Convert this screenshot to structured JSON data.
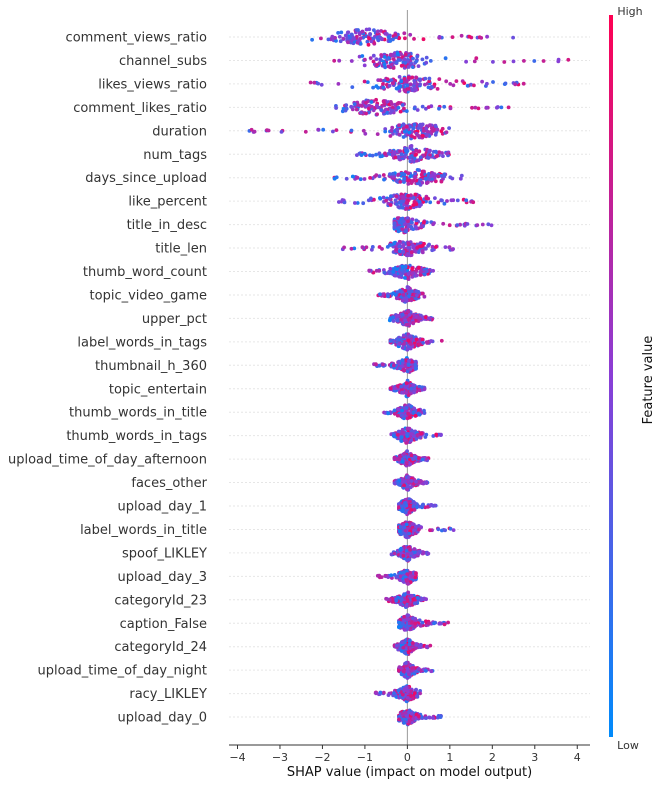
{
  "chart_data": {
    "type": "beeswarm",
    "xlabel": "SHAP value (impact on model output)",
    "xlim": [
      -4.2,
      4.3
    ],
    "xticks": [
      -4,
      -3,
      -2,
      -1,
      0,
      1,
      2,
      3,
      4
    ],
    "colorbar": {
      "label": "Feature value",
      "high": "High",
      "low": "Low",
      "low_color": "#008bfb",
      "high_color": "#ff0052"
    },
    "features": [
      {
        "name": "comment_views_ratio",
        "min": -2.3,
        "max": 2.5,
        "peak": -1.0,
        "spread": 0.55
      },
      {
        "name": "channel_subs",
        "min": -2.2,
        "max": 3.9,
        "peak": -0.2,
        "spread": 0.5
      },
      {
        "name": "likes_views_ratio",
        "min": -2.8,
        "max": 2.8,
        "peak": 0.0,
        "spread": 0.6
      },
      {
        "name": "comment_likes_ratio",
        "min": -1.7,
        "max": 2.5,
        "peak": -0.8,
        "spread": 0.5
      },
      {
        "name": "duration",
        "min": -3.9,
        "max": 1.0,
        "peak": 0.2,
        "spread": 0.5
      },
      {
        "name": "num_tags",
        "min": -1.2,
        "max": 1.1,
        "peak": 0.1,
        "spread": 0.6
      },
      {
        "name": "days_since_upload",
        "min": -1.8,
        "max": 1.4,
        "peak": 0.2,
        "spread": 0.55
      },
      {
        "name": "like_percent",
        "min": -1.7,
        "max": 1.6,
        "peak": 0.0,
        "spread": 0.45
      },
      {
        "name": "title_in_desc",
        "min": -0.3,
        "max": 2.0,
        "peak": -0.1,
        "spread": 0.35
      },
      {
        "name": "title_len",
        "min": -1.6,
        "max": 1.1,
        "peak": 0.0,
        "spread": 0.4
      },
      {
        "name": "thumb_word_count",
        "min": -0.9,
        "max": 0.7,
        "peak": 0.0,
        "spread": 0.35
      },
      {
        "name": "topic_video_game",
        "min": -0.7,
        "max": 0.4,
        "peak": 0.0,
        "spread": 0.3
      },
      {
        "name": "upper_pct",
        "min": -0.5,
        "max": 0.7,
        "peak": 0.0,
        "spread": 0.3
      },
      {
        "name": "label_words_in_tags",
        "min": -0.4,
        "max": 0.9,
        "peak": 0.0,
        "spread": 0.3
      },
      {
        "name": "thumbnail_h_360",
        "min": -0.8,
        "max": 0.2,
        "peak": 0.0,
        "spread": 0.25
      },
      {
        "name": "topic_entertain",
        "min": -0.4,
        "max": 0.4,
        "peak": 0.0,
        "spread": 0.3
      },
      {
        "name": "thumb_words_in_title",
        "min": -0.6,
        "max": 0.4,
        "peak": 0.0,
        "spread": 0.25
      },
      {
        "name": "thumb_words_in_tags",
        "min": -0.4,
        "max": 0.8,
        "peak": 0.0,
        "spread": 0.25
      },
      {
        "name": "upload_time_of_day_afternoon",
        "min": -0.3,
        "max": 0.5,
        "peak": 0.0,
        "spread": 0.25
      },
      {
        "name": "faces_other",
        "min": -0.3,
        "max": 0.5,
        "peak": 0.0,
        "spread": 0.25
      },
      {
        "name": "upload_day_1",
        "min": -0.2,
        "max": 0.7,
        "peak": 0.0,
        "spread": 0.2
      },
      {
        "name": "label_words_in_title",
        "min": -0.2,
        "max": 1.1,
        "peak": 0.0,
        "spread": 0.2
      },
      {
        "name": "spoof_LIKLEY",
        "min": -0.4,
        "max": 0.5,
        "peak": 0.0,
        "spread": 0.2
      },
      {
        "name": "upload_day_3",
        "min": -0.7,
        "max": 0.2,
        "peak": 0.0,
        "spread": 0.2
      },
      {
        "name": "categoryId_23",
        "min": -0.5,
        "max": 0.5,
        "peak": 0.0,
        "spread": 0.2
      },
      {
        "name": "caption_False",
        "min": -0.2,
        "max": 1.0,
        "peak": 0.0,
        "spread": 0.2
      },
      {
        "name": "categoryId_24",
        "min": -0.3,
        "max": 0.6,
        "peak": 0.0,
        "spread": 0.2
      },
      {
        "name": "upload_time_of_day_night",
        "min": -0.2,
        "max": 0.6,
        "peak": 0.0,
        "spread": 0.2
      },
      {
        "name": "racy_LIKLEY",
        "min": -0.8,
        "max": 0.3,
        "peak": 0.0,
        "spread": 0.2
      },
      {
        "name": "upload_day_0",
        "min": -0.2,
        "max": 0.8,
        "peak": 0.0,
        "spread": 0.2
      }
    ]
  }
}
